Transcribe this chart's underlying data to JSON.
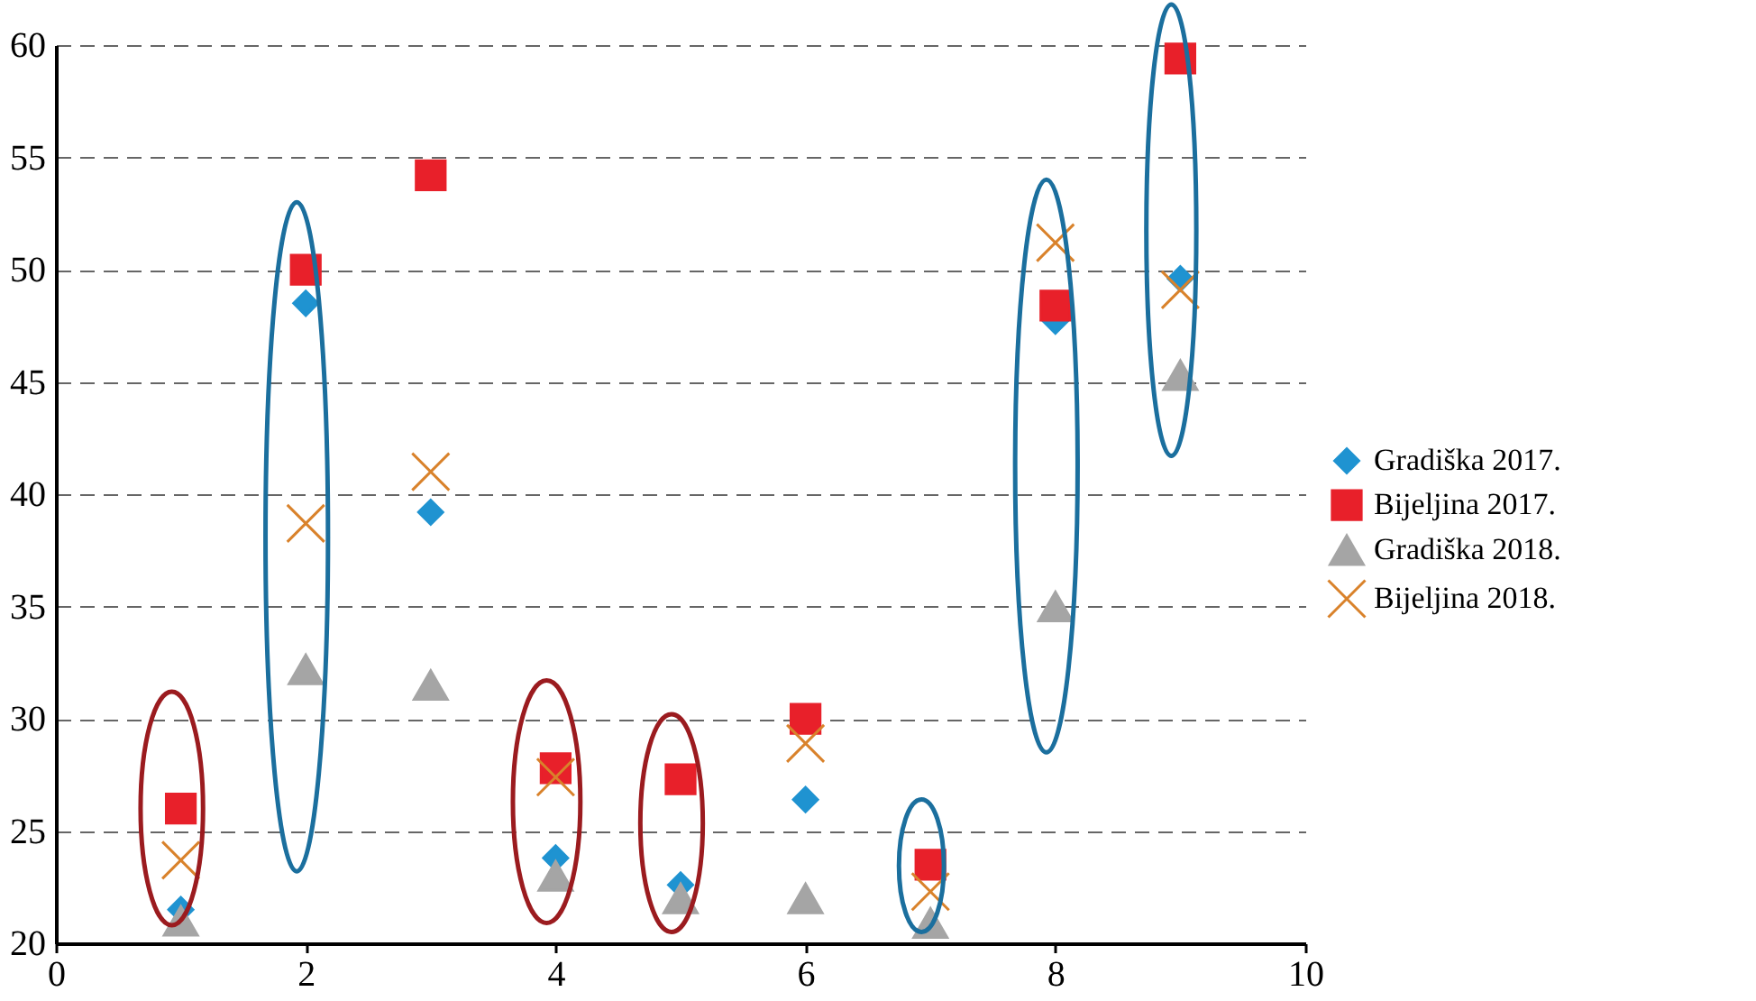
{
  "chart_data": {
    "type": "scatter",
    "x": [
      1,
      2,
      3,
      4,
      5,
      6,
      7,
      8,
      9
    ],
    "series": [
      {
        "name": "Gradiška 2017.",
        "color": "#1f93d1",
        "marker": "diamond",
        "values": [
          21.5,
          48.5,
          39.2,
          23.8,
          22.6,
          26.4,
          null,
          47.7,
          49.6
        ]
      },
      {
        "name": "Bijeljina 2017.",
        "color": "#e8202a",
        "marker": "square",
        "values": [
          26.0,
          50.0,
          54.2,
          27.8,
          27.3,
          30.0,
          23.5,
          48.4,
          59.4
        ]
      },
      {
        "name": "Gradiška 2018.",
        "color": "#a5a5a5",
        "marker": "triangle",
        "values": [
          21.0,
          32.2,
          31.5,
          23.0,
          22.0,
          22.0,
          20.9,
          35.0,
          45.3
        ]
      },
      {
        "name": "Bijeljina 2018.",
        "color": "#d9822b",
        "marker": "cross",
        "values": [
          23.7,
          38.7,
          41.0,
          27.4,
          null,
          28.9,
          22.3,
          51.2,
          49.1
        ]
      }
    ],
    "xlim": [
      0,
      10
    ],
    "xticks": [
      0,
      2,
      4,
      6,
      8,
      10
    ],
    "ylim": [
      20,
      60
    ],
    "yticks": [
      20,
      25,
      30,
      35,
      40,
      45,
      50,
      55,
      60
    ],
    "grid": "y",
    "legend": "right"
  }
}
